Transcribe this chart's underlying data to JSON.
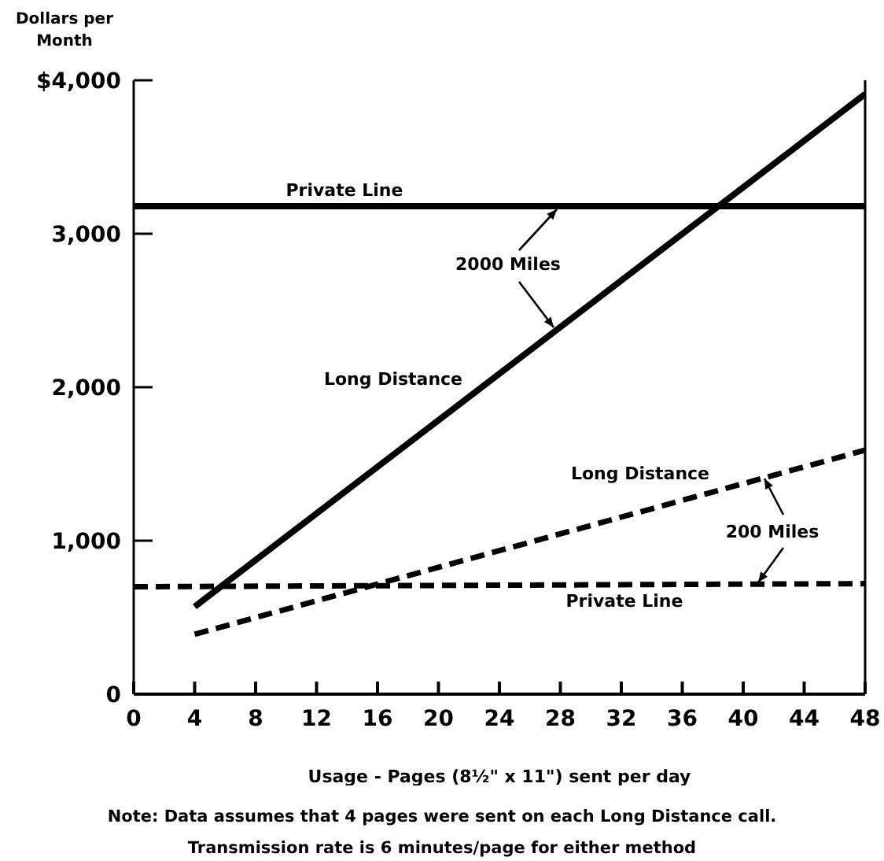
{
  "chart_data": {
    "type": "line",
    "ylabel": "Dollars per Month",
    "xlabel": "Usage - Pages (8½\" x 11\") sent per day",
    "xlim": [
      0,
      48
    ],
    "xticks": [
      0,
      4,
      8,
      12,
      16,
      20,
      24,
      28,
      32,
      36,
      40,
      44,
      48
    ],
    "ylim": [
      0,
      4000
    ],
    "yticks": [
      0,
      {
        "value": 1000,
        "label": "1,000"
      },
      {
        "value": 2000,
        "label": "2,000"
      },
      {
        "value": 3000,
        "label": "3,000"
      },
      {
        "value": 4000,
        "label": "$4,000"
      }
    ],
    "marker": "none",
    "series": [
      {
        "color": "#000000",
        "line_style": "solid",
        "x": [
          0,
          48
        ],
        "values": [
          3180,
          3180
        ]
      },
      {
        "color": "#000000",
        "line_style": "solid",
        "x": [
          4,
          48
        ],
        "values": [
          570,
          3910
        ]
      },
      {
        "color": "#000000",
        "line_style": "dashed",
        "x": [
          4,
          48
        ],
        "values": [
          390,
          1590
        ]
      },
      {
        "color": "#000000",
        "line_style": "dashed",
        "x": [
          0,
          48
        ],
        "values": [
          700,
          720
        ]
      }
    ],
    "annotations": [
      "Private Line",
      "2000 Miles",
      "Long Distance",
      "Long Distance",
      "200 Miles",
      "Private Line",
      "Note: Data assumes that 4 pages were sent on each Long Distance call.",
      "Transmission rate is 6 minutes/page for either method"
    ]
  }
}
